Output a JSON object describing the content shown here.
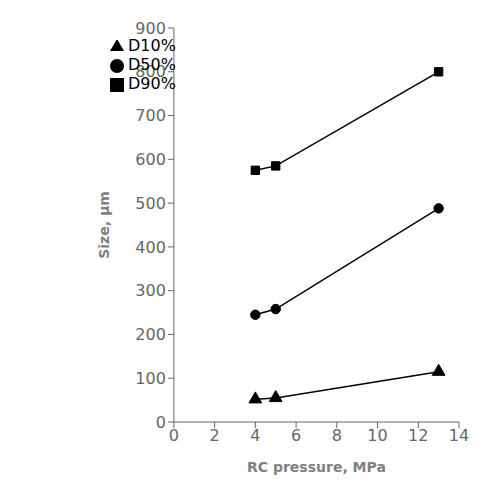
{
  "chart_data": {
    "type": "line",
    "x_label": "RC pressure, MPa",
    "y_label": "Size, μm",
    "x": [
      4,
      5,
      13
    ],
    "series": [
      {
        "name": "D90%",
        "color": "#000000",
        "marker": "square",
        "values": [
          575,
          585,
          800
        ]
      },
      {
        "name": "D50%",
        "color": "#000000",
        "marker": "circle",
        "values": [
          245,
          258,
          488
        ]
      },
      {
        "name": "D10%",
        "color": "#000000",
        "marker": "triangle",
        "values": [
          52,
          55,
          115
        ]
      }
    ],
    "xlim": [
      0,
      14
    ],
    "ylim": [
      0,
      900
    ],
    "xticks": [
      0,
      2,
      4,
      6,
      8,
      10,
      12,
      14
    ],
    "yticks": [
      0,
      100,
      200,
      300,
      400,
      500,
      600,
      700,
      800,
      900
    ],
    "grid": false,
    "legend": "upper left"
  }
}
